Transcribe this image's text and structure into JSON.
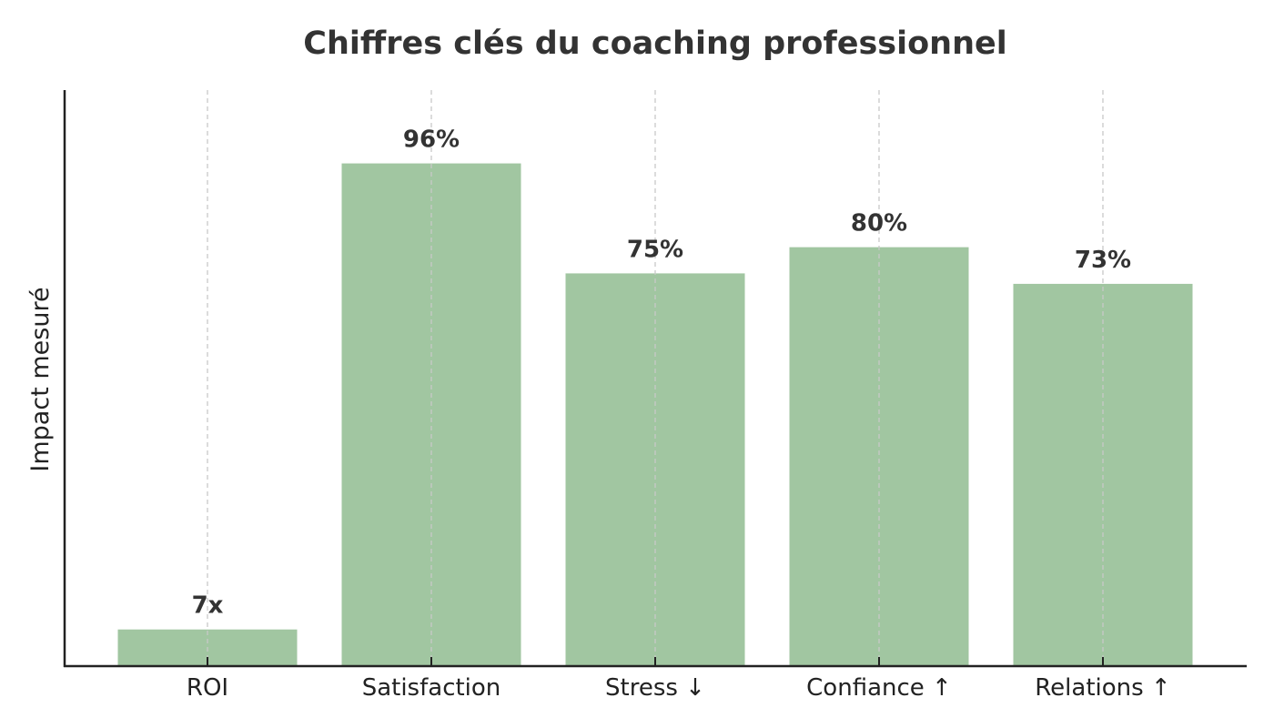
{
  "chart_data": {
    "type": "bar",
    "title": "Chiffres clés du coaching professionnel",
    "xlabel": "",
    "ylabel": "Impact mesuré",
    "categories": [
      "ROI",
      "Satisfaction",
      "Stress ↓",
      "Confiance ↑",
      "Relations ↑"
    ],
    "values": [
      7,
      96,
      75,
      80,
      73
    ],
    "value_labels": [
      "7x",
      "96%",
      "75%",
      "80%",
      "73%"
    ],
    "ylim": [
      0,
      110
    ],
    "bar_color": "#a1c6a1",
    "grid": "vertical dashed",
    "legend": "none"
  }
}
